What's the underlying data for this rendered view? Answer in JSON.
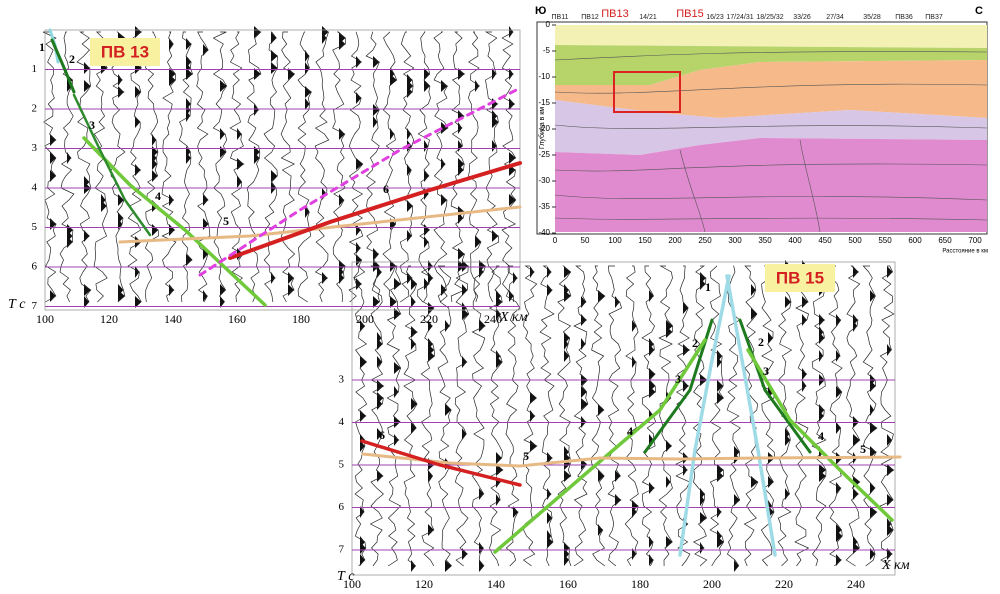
{
  "pv13": {
    "title": "ПВ 13",
    "x_label": "Х км",
    "y_label": "Т с",
    "x_ticks": [
      100,
      120,
      140,
      160,
      180,
      200,
      220,
      240
    ],
    "y_ticks": [
      1,
      2,
      3,
      4,
      5,
      6,
      7
    ],
    "curve_labels": [
      "1",
      "2",
      "3",
      "4",
      "5",
      "6"
    ]
  },
  "pv15": {
    "title": "ПВ 15",
    "x_label": "Х км",
    "y_label": "Т с",
    "x_ticks": [
      100,
      120,
      140,
      160,
      180,
      200,
      220,
      240
    ],
    "y_ticks": [
      3,
      4,
      5,
      6,
      7
    ],
    "curve_labels": [
      "1",
      "2",
      "2",
      "3",
      "3",
      "4",
      "4",
      "5",
      "5",
      "6"
    ]
  },
  "section": {
    "south": "Ю",
    "north": "С",
    "profile_labels": [
      "ПВ11",
      "ПВ12",
      "ПВ13",
      "14/21",
      "ПВ15",
      "16/23",
      "17/24/31",
      "18/25/32",
      "33/26",
      "27/34",
      "35/28",
      "ПВ36",
      "ПВ37"
    ],
    "depth_ticks": [
      0,
      -5,
      -10,
      -15,
      -20,
      -25,
      -30,
      -35,
      -40
    ],
    "distance_ticks": [
      0,
      50,
      100,
      150,
      200,
      250,
      300,
      350,
      400,
      450,
      500,
      550,
      600,
      650,
      700
    ],
    "y_label": "Глубина в км",
    "x_label": "Расстояние в км"
  }
}
